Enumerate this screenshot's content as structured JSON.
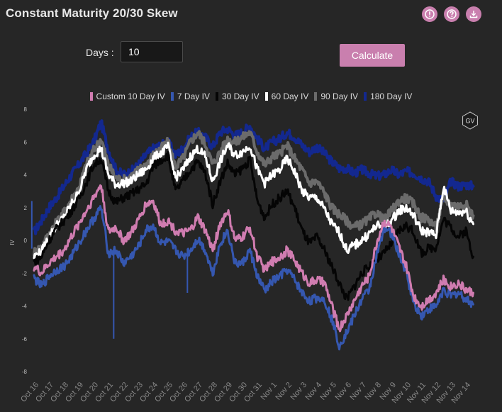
{
  "header": {
    "title": "Constant Maturity 20/30 Skew"
  },
  "toolbar": {
    "icons": [
      "alert-icon",
      "help-icon",
      "download-icon"
    ]
  },
  "form": {
    "days_label": "Days :",
    "days_value": "10",
    "calculate_label": "Calculate"
  },
  "colors": {
    "pink": "#d07cb0",
    "blue7": "#3557b0",
    "black30": "#050505",
    "white60": "#ffffff",
    "gray90": "#6b6b6b",
    "navy180": "#13288f",
    "button": "#c97fae"
  },
  "chart_data": {
    "type": "line",
    "watermark": "GV",
    "ylabel": "IV",
    "ylim": [
      -8,
      8
    ],
    "yticks": [
      8,
      6,
      4,
      2,
      0,
      -2,
      -4,
      -6,
      -8
    ],
    "grid": false,
    "legend_position": "top",
    "xlim": [
      0,
      30
    ],
    "x_tick_labels": [
      "Oct 16",
      "Oct 17",
      "Oct 18",
      "Oct 19",
      "Oct 20",
      "Oct 21",
      "Oct 22",
      "Oct 23",
      "Oct 24",
      "Oct 25",
      "Oct 26",
      "Oct 27",
      "Oct 28",
      "Oct 29",
      "Oct 30",
      "Oct 31",
      "Nov 1",
      "Nov 2",
      "Nov 3",
      "Nov 4",
      "Nov 5",
      "Nov 6",
      "Nov 7",
      "Nov 8",
      "Nov 9",
      "Nov 10",
      "Nov 11",
      "Nov 12",
      "Nov 13",
      "Nov 14"
    ],
    "x_tick_positions": [
      0,
      1,
      2,
      3,
      4,
      5,
      6,
      7,
      8,
      9,
      10,
      11,
      12,
      13,
      14,
      15,
      16,
      17,
      18,
      19,
      20,
      21,
      22,
      23,
      24,
      25,
      26,
      27,
      28,
      29
    ],
    "series": [
      {
        "name": "180 Day IV",
        "color": "#13288f",
        "width": 4,
        "x": [
          0,
          0.5,
          1,
          1.5,
          2,
          2.5,
          3,
          3.5,
          4,
          4.5,
          5,
          5.5,
          6,
          6.5,
          7,
          7.5,
          8,
          8.5,
          9,
          9.5,
          10,
          10.5,
          11,
          11.5,
          12,
          12.5,
          13,
          13.5,
          14,
          14.5,
          15,
          15.5,
          16,
          16.5,
          17,
          17.5,
          18,
          18.5,
          19,
          19.5,
          20,
          20.5,
          21,
          21.5,
          22,
          22.5,
          23,
          23.5,
          24,
          24.5,
          25,
          25.5,
          26,
          26.5,
          27,
          27.5,
          28,
          28.5,
          29,
          29.5
        ],
        "y": [
          0.5,
          1.2,
          2.0,
          2.6,
          3.3,
          4.0,
          4.6,
          5.3,
          6.0,
          7.2,
          5.5,
          4.3,
          4.0,
          4.2,
          4.6,
          5.2,
          5.6,
          5.8,
          6.0,
          5.2,
          5.6,
          6.3,
          6.6,
          6.3,
          5.7,
          6.6,
          6.8,
          6.4,
          6.6,
          7.0,
          6.2,
          5.6,
          6.0,
          6.2,
          6.6,
          6.3,
          5.8,
          5.4,
          5.7,
          5.3,
          4.8,
          4.4,
          4.4,
          4.1,
          4.3,
          4.1,
          3.9,
          4.0,
          4.3,
          4.0,
          4.2,
          4.1,
          3.8,
          3.6,
          2.7,
          2.4,
          3.6,
          3.3,
          3.4,
          3.3
        ]
      },
      {
        "name": "90 Day IV",
        "color": "#6b6b6b",
        "width": 4,
        "x": [
          0,
          0.5,
          1,
          1.5,
          2,
          2.5,
          3,
          3.5,
          4,
          4.5,
          5,
          5.5,
          6,
          6.5,
          7,
          7.5,
          8,
          8.5,
          9,
          9.5,
          10,
          10.5,
          11,
          11.5,
          12,
          12.5,
          13,
          13.5,
          14,
          14.5,
          15,
          15.5,
          16,
          16.5,
          17,
          17.5,
          18,
          18.5,
          19,
          19.5,
          20,
          20.5,
          21,
          21.5,
          22,
          22.5,
          23,
          23.5,
          24,
          24.5,
          25,
          25.5,
          26,
          26.5,
          27,
          27.5,
          28,
          28.5,
          29,
          29.5
        ],
        "y": [
          -0.7,
          -0.4,
          0.4,
          1.1,
          1.7,
          2.5,
          3.2,
          4.6,
          5.5,
          6.2,
          4.6,
          3.8,
          3.7,
          3.9,
          4.3,
          4.6,
          5.2,
          5.6,
          6.0,
          4.5,
          5.0,
          6.0,
          6.6,
          5.9,
          4.6,
          5.4,
          6.2,
          6.0,
          6.3,
          6.6,
          5.4,
          4.6,
          5.1,
          5.3,
          5.8,
          5.0,
          4.3,
          3.5,
          3.6,
          2.9,
          2.0,
          1.6,
          1.2,
          0.8,
          1.0,
          1.3,
          1.7,
          1.2,
          1.8,
          2.4,
          2.6,
          2.2,
          1.4,
          1.3,
          0.8,
          2.6,
          2.2,
          2.1,
          2.2,
          1.5
        ]
      },
      {
        "name": "60 Day IV",
        "color": "#ffffff",
        "width": 3,
        "x": [
          0,
          0.5,
          1,
          1.5,
          2,
          2.5,
          3,
          3.5,
          4,
          4.5,
          5,
          5.5,
          6,
          6.5,
          7,
          7.5,
          8,
          8.5,
          9,
          9.5,
          10,
          10.5,
          11,
          11.5,
          12,
          12.5,
          13,
          13.5,
          14,
          14.5,
          15,
          15.5,
          16,
          16.5,
          17,
          17.5,
          18,
          18.5,
          19,
          19.5,
          20,
          20.5,
          21,
          21.5,
          22,
          22.5,
          23,
          23.5,
          24,
          24.5,
          25,
          25.5,
          26,
          26.5,
          27,
          27.5,
          28,
          28.5,
          29,
          29.5
        ],
        "y": [
          -1.0,
          -0.7,
          0.2,
          0.9,
          1.4,
          2.2,
          2.9,
          4.3,
          5.2,
          5.6,
          4.0,
          3.4,
          3.5,
          3.6,
          4.0,
          4.3,
          5.0,
          5.3,
          5.7,
          3.8,
          4.3,
          5.1,
          5.6,
          5.1,
          3.6,
          4.8,
          5.8,
          5.2,
          5.4,
          5.8,
          4.3,
          3.5,
          4.0,
          4.3,
          5.0,
          4.2,
          3.0,
          2.6,
          2.6,
          1.9,
          1.0,
          0.5,
          -0.6,
          -0.3,
          0.0,
          0.4,
          0.9,
          0.8,
          1.2,
          1.8,
          2.0,
          1.5,
          0.6,
          0.5,
          0.3,
          3.3,
          1.8,
          1.7,
          1.8,
          1.0
        ]
      },
      {
        "name": "30 Day IV",
        "color": "#050505",
        "width": 3,
        "x": [
          0,
          0.5,
          1,
          1.5,
          2,
          2.5,
          3,
          3.5,
          4,
          4.5,
          5,
          5.5,
          6,
          6.5,
          7,
          7.5,
          8,
          8.5,
          9,
          9.5,
          10,
          10.5,
          11,
          11.5,
          12,
          12.5,
          13,
          13.5,
          14,
          14.5,
          15,
          15.5,
          16,
          16.5,
          17,
          17.5,
          18,
          18.5,
          19,
          19.5,
          20,
          20.5,
          21,
          21.5,
          22,
          22.5,
          23,
          23.5,
          24,
          24.5,
          25,
          25.5,
          26,
          26.5,
          27,
          27.5,
          28,
          28.5,
          29,
          29.5
        ],
        "y": [
          -1.3,
          -1.0,
          0.0,
          0.7,
          1.2,
          1.8,
          2.5,
          3.5,
          4.6,
          5.0,
          3.0,
          2.3,
          2.6,
          2.8,
          3.1,
          3.4,
          4.5,
          4.9,
          5.2,
          3.0,
          3.6,
          4.3,
          4.8,
          4.1,
          2.2,
          3.6,
          4.7,
          4.0,
          4.4,
          4.9,
          2.4,
          1.4,
          2.2,
          2.6,
          3.0,
          2.0,
          0.6,
          -0.2,
          0.2,
          -0.6,
          -1.6,
          -2.6,
          -3.6,
          -2.8,
          -2.0,
          -1.6,
          -1.2,
          -0.8,
          -0.2,
          0.6,
          0.9,
          0.5,
          -0.8,
          -0.5,
          -0.4,
          1.3,
          0.8,
          0.2,
          0.6,
          -1.0
        ]
      },
      {
        "name": "7 Day IV",
        "color": "#3557b0",
        "width": 3,
        "x": [
          0,
          0.5,
          1,
          1.5,
          2,
          2.5,
          3,
          3.5,
          4,
          4.5,
          5,
          5.5,
          6,
          6.5,
          7,
          7.5,
          8,
          8.5,
          9,
          9.5,
          10,
          10.5,
          11,
          11.5,
          12,
          12.5,
          13,
          13.5,
          14,
          14.5,
          15,
          15.5,
          16,
          16.5,
          17,
          17.5,
          18,
          18.5,
          19,
          19.5,
          20,
          20.5,
          21,
          21.5,
          22,
          22.5,
          23,
          23.5,
          24,
          24.5,
          25,
          25.5,
          26,
          26.5,
          27,
          27.5,
          28,
          28.5,
          29,
          29.5
        ],
        "y": [
          -2.3,
          -2.8,
          -2.2,
          -1.8,
          -1.6,
          -1.0,
          -0.2,
          0.6,
          1.3,
          2.0,
          -0.8,
          -0.6,
          -1.4,
          -1.0,
          -0.4,
          0.6,
          0.9,
          -0.2,
          -0.1,
          -0.6,
          -1.0,
          -0.6,
          0.1,
          -0.6,
          -2.0,
          -0.2,
          0.6,
          -1.4,
          -1.4,
          -0.6,
          -2.2,
          -3.1,
          -2.5,
          -2.2,
          -1.8,
          -2.4,
          -3.2,
          -3.7,
          -3.5,
          -3.6,
          -4.8,
          -6.4,
          -5.6,
          -4.6,
          -3.6,
          -3.0,
          -1.0,
          0.8,
          0.4,
          -0.8,
          -2.0,
          -3.8,
          -4.6,
          -4.2,
          -4.0,
          -3.0,
          -3.4,
          -3.2,
          -3.6,
          -3.9
        ]
      },
      {
        "name": "Custom 10 Day IV",
        "color": "#d07cb0",
        "width": 3,
        "x": [
          0,
          0.5,
          1,
          1.5,
          2,
          2.5,
          3,
          3.5,
          4,
          4.5,
          5,
          5.5,
          6,
          6.5,
          7,
          7.5,
          8,
          8.5,
          9,
          9.5,
          10,
          10.5,
          11,
          11.5,
          12,
          12.5,
          13,
          13.5,
          14,
          14.5,
          15,
          15.5,
          16,
          16.5,
          17,
          17.5,
          18,
          18.5,
          19,
          19.5,
          20,
          20.5,
          21,
          21.5,
          22,
          22.5,
          23,
          23.5,
          24,
          24.5,
          25,
          25.5,
          26,
          26.5,
          27,
          27.5,
          28,
          28.5,
          29,
          29.5
        ],
        "y": [
          -1.6,
          -2.0,
          -1.4,
          -1.0,
          -0.6,
          0.2,
          1.0,
          1.8,
          2.6,
          3.4,
          0.5,
          0.8,
          0.0,
          0.4,
          1.2,
          2.2,
          2.4,
          1.0,
          1.2,
          0.6,
          0.4,
          0.6,
          1.4,
          0.6,
          -0.6,
          1.0,
          1.8,
          0.0,
          0.2,
          0.8,
          -1.0,
          -1.8,
          -1.3,
          -1.0,
          -0.6,
          -1.2,
          -2.0,
          -2.6,
          -2.4,
          -2.6,
          -4.0,
          -5.4,
          -4.6,
          -3.7,
          -2.8,
          -2.2,
          -0.2,
          1.2,
          0.8,
          -0.4,
          -1.6,
          -3.4,
          -4.0,
          -3.6,
          -3.2,
          -2.4,
          -2.8,
          -2.6,
          -3.0,
          -3.2
        ]
      }
    ],
    "spikes": [
      {
        "x": 5.35,
        "y": -6.0
      },
      {
        "x": 10.3,
        "y": -3.2
      },
      {
        "x": -0.15,
        "y": 2.4
      }
    ]
  }
}
